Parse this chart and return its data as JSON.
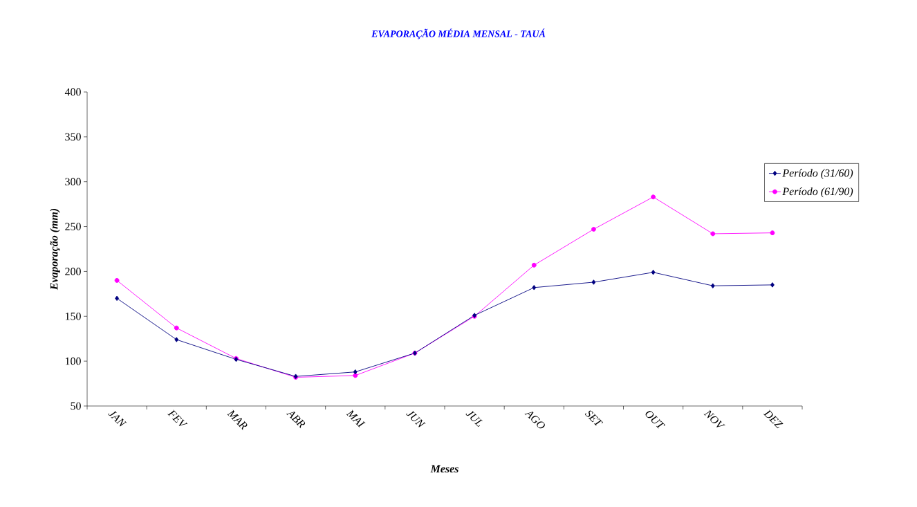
{
  "chart_data": {
    "type": "line",
    "title": "EVAPORAÇÃO MÉDIA MENSAL - TAUÁ",
    "xlabel": "Meses",
    "ylabel": "Evaporação (mm)",
    "categories": [
      "JAN",
      "FEV",
      "MAR",
      "ABR",
      "MAI",
      "JUN",
      "JUL",
      "AGO",
      "SET",
      "OUT",
      "NOV",
      "DEZ"
    ],
    "series": [
      {
        "name": "Período (31/60)",
        "color": "#000080",
        "marker": "diamond",
        "values": [
          170,
          124,
          102,
          83,
          88,
          109,
          151,
          182,
          188,
          199,
          184,
          185
        ]
      },
      {
        "name": "Período  (61/90)",
        "color": "#ff00ff",
        "marker": "circle",
        "values": [
          190,
          137,
          103,
          82,
          84,
          109,
          150,
          207,
          247,
          283,
          242,
          243
        ]
      }
    ],
    "ylim": [
      50,
      400
    ],
    "yticks": [
      50,
      100,
      150,
      200,
      250,
      300,
      350,
      400
    ],
    "grid": false,
    "legend": "right",
    "line_style": "solid"
  }
}
